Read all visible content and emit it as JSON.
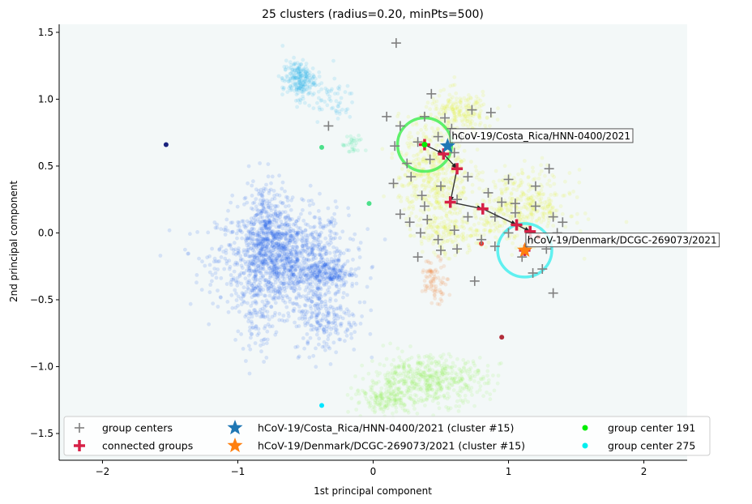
{
  "chart_data": {
    "type": "scatter",
    "title": "25 clusters (radius=0.20, minPts=500)",
    "xlabel": "1st principal component",
    "ylabel": "2nd principal component",
    "xlim": [
      -2.32,
      2.32
    ],
    "ylim": [
      -1.7,
      1.56
    ],
    "xticks": [
      -2,
      -1,
      0,
      1,
      2
    ],
    "xtick_labels": [
      "−2",
      "−1",
      "0",
      "1",
      "2"
    ],
    "yticks": [
      -1.5,
      -1.0,
      -0.5,
      0.0,
      0.5,
      1.0,
      1.5
    ],
    "ytick_labels": [
      "−1.5",
      "−1.0",
      "−0.5",
      "0.0",
      "0.5",
      "1.0",
      "1.5"
    ],
    "grid": false,
    "plot_background": "#f3f8f8",
    "clusters": [
      {
        "cx": -0.67,
        "cy": -0.2,
        "sx": 0.24,
        "sy": 0.19,
        "n": 1300,
        "color": "#0a4de6"
      },
      {
        "cx": -0.8,
        "cy": 0.05,
        "sx": 0.08,
        "sy": 0.18,
        "n": 250,
        "color": "#0a4de6"
      },
      {
        "cx": -0.35,
        "cy": -0.3,
        "sx": 0.1,
        "sy": 0.05,
        "n": 180,
        "color": "#0a4de6"
      },
      {
        "cx": -0.35,
        "cy": -0.65,
        "sx": 0.12,
        "sy": 0.13,
        "n": 200,
        "color": "#0a4de6"
      },
      {
        "cx": -0.85,
        "cy": -0.6,
        "sx": 0.06,
        "sy": 0.15,
        "n": 90,
        "color": "#0a4de6"
      },
      {
        "cx": -0.55,
        "cy": 1.15,
        "sx": 0.06,
        "sy": 0.07,
        "n": 220,
        "color": "#0ea7ea"
      },
      {
        "cx": -0.33,
        "cy": 1.0,
        "sx": 0.1,
        "sy": 0.08,
        "n": 60,
        "color": "#0ea7ea"
      },
      {
        "cx": -0.15,
        "cy": 0.65,
        "sx": 0.04,
        "sy": 0.04,
        "n": 30,
        "color": "#22e08a"
      },
      {
        "cx": 0.45,
        "cy": 0.45,
        "sx": 0.13,
        "sy": 0.2,
        "n": 500,
        "color": "#e2f015"
      },
      {
        "cx": 0.65,
        "cy": 0.9,
        "sx": 0.12,
        "sy": 0.08,
        "n": 200,
        "color": "#e2f015"
      },
      {
        "cx": 1.1,
        "cy": 0.2,
        "sx": 0.18,
        "sy": 0.13,
        "n": 380,
        "color": "#e2f015"
      },
      {
        "cx": 0.52,
        "cy": 0.0,
        "sx": 0.08,
        "sy": 0.08,
        "n": 120,
        "color": "#e2f015"
      },
      {
        "cx": 0.8,
        "cy": 0.0,
        "sx": 0.1,
        "sy": 0.06,
        "n": 60,
        "color": "#e2f015"
      },
      {
        "cx": 0.45,
        "cy": -0.35,
        "sx": 0.05,
        "sy": 0.08,
        "n": 80,
        "color": "#f06a1a"
      },
      {
        "cx": 0.4,
        "cy": -1.1,
        "sx": 0.22,
        "sy": 0.09,
        "n": 550,
        "color": "#8ef04a"
      },
      {
        "cx": 0.1,
        "cy": -1.25,
        "sx": 0.12,
        "sy": 0.05,
        "n": 150,
        "color": "#8ef04a"
      }
    ],
    "outlier_points": [
      {
        "x": -1.53,
        "y": 0.66,
        "color": "#1a237e"
      },
      {
        "x": 0.95,
        "y": -0.78,
        "color": "#b22d3a"
      },
      {
        "x": -0.38,
        "y": -1.29,
        "color": "#00e5ff"
      },
      {
        "x": 0.8,
        "y": -0.08,
        "color": "#e53935"
      },
      {
        "x": 1.22,
        "y": -0.03,
        "color": "#e53935"
      },
      {
        "x": -0.38,
        "y": 0.64,
        "color": "#4ce08a"
      },
      {
        "x": -0.03,
        "y": 0.22,
        "color": "#4ce08a"
      }
    ],
    "group_centers": [
      [
        0.17,
        1.42
      ],
      [
        0.43,
        1.04
      ],
      [
        0.1,
        0.87
      ],
      [
        0.38,
        0.87
      ],
      [
        0.53,
        0.86
      ],
      [
        0.73,
        0.92
      ],
      [
        0.87,
        0.9
      ],
      [
        0.2,
        0.8
      ],
      [
        0.58,
        0.78
      ],
      [
        -0.33,
        0.8
      ],
      [
        0.16,
        0.65
      ],
      [
        0.33,
        0.68
      ],
      [
        0.48,
        0.72
      ],
      [
        0.65,
        0.72
      ],
      [
        0.25,
        0.52
      ],
      [
        0.6,
        0.6
      ],
      [
        0.42,
        0.55
      ],
      [
        0.28,
        0.42
      ],
      [
        0.15,
        0.37
      ],
      [
        0.5,
        0.35
      ],
      [
        0.7,
        0.42
      ],
      [
        0.36,
        0.28
      ],
      [
        0.62,
        0.25
      ],
      [
        0.95,
        0.23
      ],
      [
        1.05,
        0.22
      ],
      [
        1.2,
        0.35
      ],
      [
        1.3,
        0.48
      ],
      [
        0.2,
        0.14
      ],
      [
        0.27,
        0.08
      ],
      [
        0.4,
        0.1
      ],
      [
        0.7,
        0.12
      ],
      [
        0.9,
        0.12
      ],
      [
        1.05,
        0.15
      ],
      [
        1.2,
        0.2
      ],
      [
        1.33,
        0.12
      ],
      [
        1.4,
        0.08
      ],
      [
        0.35,
        0.0
      ],
      [
        0.48,
        -0.05
      ],
      [
        0.6,
        0.02
      ],
      [
        0.8,
        -0.05
      ],
      [
        1.0,
        0.0
      ],
      [
        1.17,
        -0.05
      ],
      [
        1.36,
        0.0
      ],
      [
        0.5,
        -0.13
      ],
      [
        0.62,
        -0.12
      ],
      [
        0.9,
        -0.1
      ],
      [
        1.1,
        -0.18
      ],
      [
        1.28,
        -0.12
      ],
      [
        1.18,
        -0.3
      ],
      [
        0.33,
        -0.18
      ],
      [
        0.75,
        -0.36
      ],
      [
        1.25,
        -0.27
      ],
      [
        1.33,
        -0.45
      ],
      [
        0.38,
        0.2
      ],
      [
        0.85,
        0.3
      ],
      [
        1.0,
        0.4
      ]
    ],
    "connected_groups": [
      [
        0.38,
        0.66
      ],
      [
        0.52,
        0.59
      ],
      [
        0.62,
        0.48
      ],
      [
        0.57,
        0.23
      ],
      [
        0.81,
        0.18
      ],
      [
        1.06,
        0.06
      ],
      [
        1.16,
        0.01
      ],
      [
        1.12,
        -0.13
      ]
    ],
    "arrows": [
      {
        "from": [
          0.38,
          0.66
        ],
        "to": [
          0.52,
          0.59
        ]
      },
      {
        "from": [
          0.52,
          0.59
        ],
        "to": [
          0.62,
          0.48
        ]
      },
      {
        "from": [
          0.62,
          0.48
        ],
        "to": [
          0.57,
          0.23
        ]
      },
      {
        "from": [
          0.57,
          0.23
        ],
        "to": [
          0.81,
          0.18
        ]
      },
      {
        "from": [
          0.81,
          0.18
        ],
        "to": [
          1.06,
          0.06
        ]
      },
      {
        "from": [
          1.06,
          0.06
        ],
        "to": [
          1.16,
          0.01
        ]
      },
      {
        "from": [
          1.16,
          0.01
        ],
        "to": [
          1.12,
          -0.13
        ]
      }
    ],
    "query_points": [
      {
        "label": "hCoV-19/Costa_Rica/HNN-0400/2021",
        "x": 0.55,
        "y": 0.65,
        "color": "#1f77b4"
      },
      {
        "label": "hCoV-19/Denmark/DCGC-269073/2021",
        "x": 1.12,
        "y": -0.13,
        "color": "#ff7f0e"
      }
    ],
    "group_center_markers": [
      {
        "label": "group center 191",
        "x": 0.38,
        "y": 0.66,
        "color": "#00ee00"
      },
      {
        "label": "group center 275",
        "x": 1.12,
        "y": -0.13,
        "color": "#00eeee"
      }
    ],
    "circles": [
      {
        "x": 0.38,
        "y": 0.66,
        "r": 0.2,
        "color": "#44ee55"
      },
      {
        "x": 1.12,
        "y": -0.13,
        "r": 0.2,
        "color": "#44eeee"
      }
    ],
    "annotations": [
      {
        "text": "hCoV-19/Costa_Rica/HNN-0400/2021",
        "x": 0.58,
        "y": 0.7
      },
      {
        "text": "hCoV-19/Denmark/DCGC-269073/2021",
        "x": 1.14,
        "y": -0.08
      }
    ],
    "legend": {
      "placement": "lower-left",
      "entries": [
        {
          "label": "group centers",
          "marker": "plus-gray"
        },
        {
          "label": "connected groups",
          "marker": "plus-red"
        },
        {
          "label": "hCoV-19/Costa_Rica/HNN-0400/2021 (cluster #15)",
          "marker": "star",
          "color": "#1f77b4"
        },
        {
          "label": "hCoV-19/Denmark/DCGC-269073/2021 (cluster #15)",
          "marker": "star",
          "color": "#ff7f0e"
        },
        {
          "label": "group center 191",
          "marker": "dot",
          "color": "#00ee00"
        },
        {
          "label": "group center 275",
          "marker": "dot",
          "color": "#00eeee"
        }
      ]
    }
  }
}
